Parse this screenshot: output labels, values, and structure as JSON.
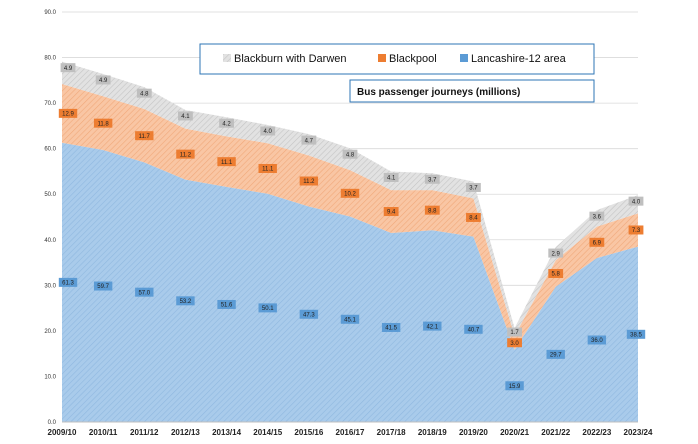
{
  "chart_data": {
    "type": "area",
    "stacked": true,
    "title": "",
    "subtitle": "Bus passenger journeys (millions)",
    "xlabel": "",
    "ylabel": "",
    "ylim": [
      0,
      90
    ],
    "ytick_step": 10,
    "ytick_labels": [
      "0.0",
      "10.0",
      "20.0",
      "30.0",
      "40.0",
      "50.0",
      "60.0",
      "70.0",
      "80.0",
      "90.0"
    ],
    "grid": true,
    "legend_position": "top-center",
    "categories": [
      "2009/10",
      "2010/11",
      "2011/12",
      "2012/13",
      "2013/14",
      "2014/15",
      "2015/16",
      "2016/17",
      "2017/18",
      "2018/19",
      "2019/20",
      "2020/21",
      "2021/22",
      "2022/23",
      "2023/24"
    ],
    "series": [
      {
        "name": "Lancashire-12 area",
        "color": "#9dc3e6",
        "label_color": "#5b9bd5",
        "values": [
          61.3,
          59.7,
          57.0,
          53.2,
          51.6,
          50.1,
          47.3,
          45.1,
          41.5,
          42.1,
          40.7,
          15.9,
          29.7,
          36.0,
          38.5
        ],
        "labels": [
          "61.3",
          "59.7",
          "57.0",
          "53.2",
          "51.6",
          "50.1",
          "47.3",
          "45.1",
          "41.5",
          "42.1",
          "40.7",
          "15.9",
          "29.7",
          "36.0",
          "38.5"
        ]
      },
      {
        "name": "Blackpool",
        "color": "#f8cbad",
        "label_color": "#ed7d31",
        "values": [
          12.9,
          11.8,
          11.7,
          11.2,
          11.1,
          11.1,
          11.2,
          10.2,
          9.4,
          8.8,
          8.4,
          3.0,
          5.8,
          6.9,
          7.3
        ],
        "labels": [
          "12.9",
          "11.8",
          "11.7",
          "11.2",
          "11.1",
          "11.1",
          "11.2",
          "10.2",
          "9.4",
          "8.8",
          "8.4",
          "3.0",
          "5.8",
          "6.9",
          "7.3"
        ]
      },
      {
        "name": "Blackburn with Darwen",
        "color": "#d9d9d9",
        "label_color": "#bfbfbf",
        "values": [
          4.9,
          4.9,
          4.8,
          4.1,
          4.2,
          4.0,
          4.7,
          4.8,
          4.1,
          3.7,
          3.7,
          1.7,
          2.9,
          3.6,
          4.0
        ],
        "labels": [
          "4.9",
          "4.9",
          "4.8",
          "4.1",
          "4.2",
          "4.0",
          "4.7",
          "4.8",
          "4.1",
          "3.7",
          "3.7",
          "1.7",
          "2.9",
          "3.6",
          "4.0"
        ]
      }
    ],
    "legend_order": [
      "Blackburn with Darwen",
      "Blackpool",
      "Lancashire-12 area"
    ]
  }
}
